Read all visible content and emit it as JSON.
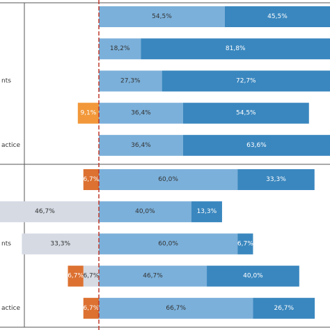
{
  "chart_data": {
    "type": "bar",
    "orientation": "horizontal",
    "stacked": "diverging",
    "grid": false,
    "legend": "none",
    "value_unit": "%",
    "colors": {
      "light_blue": "#7bb0da",
      "dark_blue": "#3a87bf",
      "light_gray": "#d5dae3",
      "orange": "#f2983a",
      "dark_orange": "#dc7131",
      "reference_line": "#c0392b",
      "label_on_dark": "#ffffff",
      "label_on_light": "#333333"
    },
    "panels": [
      {
        "rows": [
          {
            "label": "",
            "segments": [
              {
                "value": 54.5,
                "label": "54,5%",
                "color": "light_blue",
                "side": "positive"
              },
              {
                "value": 45.5,
                "label": "45,5%",
                "color": "dark_blue",
                "side": "positive"
              }
            ]
          },
          {
            "label": "",
            "segments": [
              {
                "value": 18.2,
                "label": "18,2%",
                "color": "light_blue",
                "side": "positive"
              },
              {
                "value": 81.8,
                "label": "81,8%",
                "color": "dark_blue",
                "side": "positive"
              }
            ]
          },
          {
            "label": "nts",
            "segments": [
              {
                "value": 27.3,
                "label": "27,3%",
                "color": "light_blue",
                "side": "positive"
              },
              {
                "value": 72.7,
                "label": "72,7%",
                "color": "dark_blue",
                "side": "positive"
              }
            ]
          },
          {
            "label": "",
            "segments": [
              {
                "value": 9.1,
                "label": "9,1%",
                "color": "orange",
                "side": "negative"
              },
              {
                "value": 36.4,
                "label": "36,4%",
                "color": "light_blue",
                "side": "positive"
              },
              {
                "value": 54.5,
                "label": "54,5%",
                "color": "dark_blue",
                "side": "positive"
              }
            ]
          },
          {
            "label": "actice",
            "segments": [
              {
                "value": 36.4,
                "label": "36,4%",
                "color": "light_blue",
                "side": "positive"
              },
              {
                "value": 63.6,
                "label": "63,6%",
                "color": "dark_blue",
                "side": "positive"
              }
            ]
          }
        ]
      },
      {
        "rows": [
          {
            "label": "",
            "segments": [
              {
                "value": 6.7,
                "label": "6,7%",
                "color": "dark_orange",
                "side": "negative"
              },
              {
                "value": 60.0,
                "label": "60,0%",
                "color": "light_blue",
                "side": "positive"
              },
              {
                "value": 33.3,
                "label": "33,3%",
                "color": "dark_blue",
                "side": "positive"
              }
            ]
          },
          {
            "label": "",
            "segments": [
              {
                "value": 46.7,
                "label": "46,7%",
                "color": "light_gray",
                "side": "negative"
              },
              {
                "value": 40.0,
                "label": "40,0%",
                "color": "light_blue",
                "side": "positive"
              },
              {
                "value": 13.3,
                "label": "13,3%",
                "color": "dark_blue",
                "side": "positive"
              }
            ]
          },
          {
            "label": "nts",
            "segments": [
              {
                "value": 33.3,
                "label": "33,3%",
                "color": "light_gray",
                "side": "negative"
              },
              {
                "value": 60.0,
                "label": "60,0%",
                "color": "light_blue",
                "side": "positive"
              },
              {
                "value": 6.7,
                "label": "6,7%",
                "color": "dark_blue",
                "side": "positive"
              }
            ]
          },
          {
            "label": "",
            "segments": [
              {
                "value": 6.7,
                "label": "6,7%",
                "color": "dark_orange",
                "side": "negative"
              },
              {
                "value": 6.7,
                "label": "6,7%",
                "color": "light_gray",
                "side": "negative"
              },
              {
                "value": 46.7,
                "label": "46,7%",
                "color": "light_blue",
                "side": "positive"
              },
              {
                "value": 40.0,
                "label": "40,0%",
                "color": "dark_blue",
                "side": "positive"
              }
            ]
          },
          {
            "label": "actice",
            "segments": [
              {
                "value": 6.7,
                "label": "6,7%",
                "color": "dark_orange",
                "side": "negative"
              },
              {
                "value": 66.7,
                "label": "66,7%",
                "color": "light_blue",
                "side": "positive"
              },
              {
                "value": 26.7,
                "label": "26,7%",
                "color": "dark_blue",
                "side": "positive"
              }
            ]
          }
        ]
      }
    ]
  }
}
